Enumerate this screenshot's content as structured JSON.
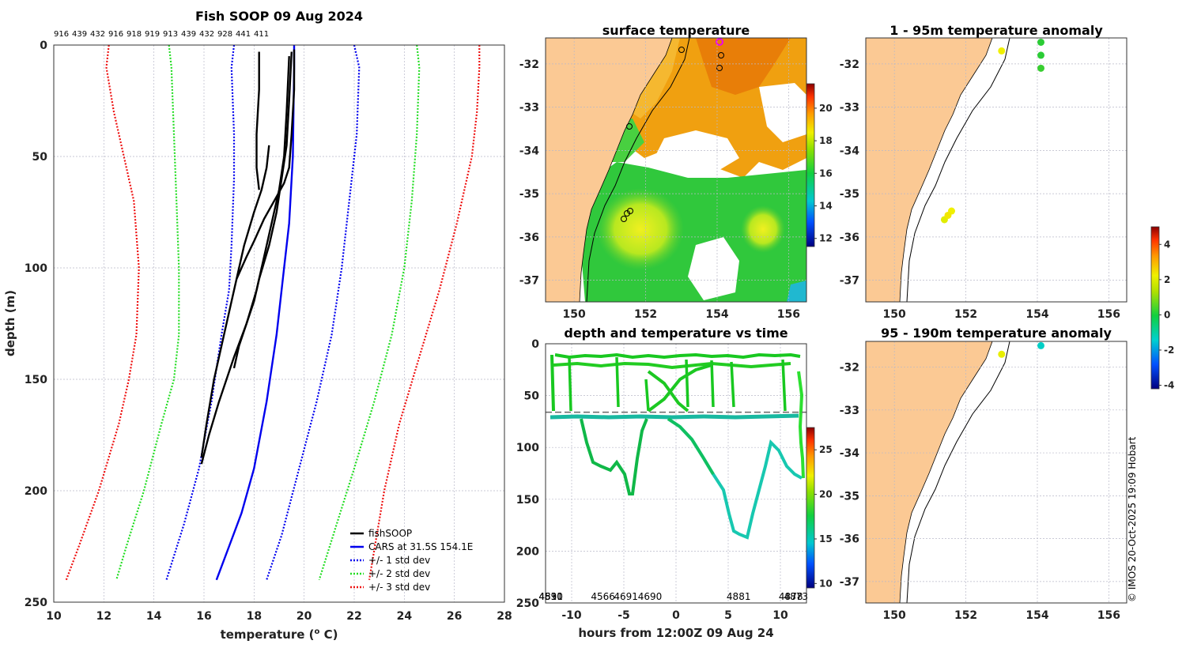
{
  "chart_data": [
    {
      "type": "line",
      "title": "Fish SOOP 09 Aug 2024",
      "top_labels": [
        "916",
        "439",
        "432",
        "916",
        "918",
        "919",
        "913",
        "439",
        "432",
        "928",
        "441",
        "411"
      ],
      "xlabel": "temperature (°C)",
      "xlabel_main": "temperature (",
      "xlabel_sup": "o",
      "xlabel_tail": " C)",
      "ylabel": "depth (m)",
      "xlim": [
        10,
        28
      ],
      "ylim": [
        0,
        250
      ],
      "xticks": [
        "10",
        "12",
        "14",
        "16",
        "18",
        "20",
        "22",
        "24",
        "26",
        "28"
      ],
      "yticks": [
        "0",
        "50",
        "100",
        "150",
        "200",
        "250"
      ],
      "legend": [
        "fishSOOP",
        "CARS at 31.5S 154.1E",
        "+/- 1 std dev",
        "+/- 2 std dev",
        "+/- 3 std dev"
      ],
      "series": [
        {
          "name": "CARS mean",
          "color": "#0000ee",
          "style": "solid",
          "x": [
            19.6,
            19.6,
            19.55,
            19.4,
            19.2,
            18.9,
            18.5,
            18.0,
            17.5,
            17.0,
            16.5
          ],
          "y": [
            0,
            10,
            50,
            80,
            100,
            130,
            160,
            190,
            210,
            225,
            240
          ]
        },
        {
          "name": "+1 std",
          "color": "#0000ee",
          "style": "dotted",
          "x": [
            22.0,
            22.2,
            22.1,
            21.8,
            21.5,
            21.1,
            20.5,
            19.8,
            19.1,
            18.5
          ],
          "y": [
            0,
            10,
            40,
            70,
            100,
            130,
            160,
            190,
            220,
            240
          ]
        },
        {
          "name": "-1 std",
          "color": "#0000ee",
          "style": "dotted",
          "x": [
            17.2,
            17.1,
            17.2,
            17.2,
            17.1,
            17.0,
            16.7,
            16.3,
            15.8,
            15.2,
            14.5
          ],
          "y": [
            0,
            10,
            40,
            60,
            90,
            110,
            130,
            160,
            190,
            215,
            240
          ]
        },
        {
          "name": "+2 std",
          "color": "#22dd22",
          "style": "dotted",
          "x": [
            24.5,
            24.6,
            24.5,
            24.3,
            24.0,
            23.5,
            22.8,
            22.0,
            21.3,
            20.6
          ],
          "y": [
            0,
            10,
            40,
            70,
            100,
            130,
            160,
            190,
            215,
            240
          ]
        },
        {
          "name": "-2 std",
          "color": "#22dd22",
          "style": "dotted",
          "x": [
            14.6,
            14.7,
            14.8,
            14.9,
            15.0,
            15.0,
            14.8,
            14.3,
            13.6,
            12.9,
            12.5
          ],
          "y": [
            0,
            10,
            40,
            70,
            100,
            130,
            150,
            170,
            200,
            225,
            240
          ]
        },
        {
          "name": "+3 std",
          "color": "#ee1111",
          "style": "dotted",
          "x": [
            27.0,
            27.0,
            26.9,
            26.7,
            26.1,
            25.4,
            24.6,
            23.8,
            23.2,
            22.6
          ],
          "y": [
            0,
            10,
            30,
            50,
            80,
            110,
            140,
            170,
            200,
            240
          ]
        },
        {
          "name": "-3 std",
          "color": "#ee1111",
          "style": "dotted",
          "x": [
            12.2,
            12.1,
            12.4,
            12.8,
            13.2,
            13.4,
            13.3,
            13.0,
            12.6,
            11.8,
            11.0,
            10.5
          ],
          "y": [
            0,
            10,
            30,
            50,
            70,
            100,
            130,
            150,
            170,
            200,
            225,
            240
          ]
        },
        {
          "name": "fishSOOP 1",
          "color": "#000000",
          "style": "solid",
          "x": [
            19.6,
            19.6,
            19.5,
            19.4,
            19.2,
            18.8,
            18.4,
            18.0,
            17.7,
            17.3
          ],
          "y": [
            2,
            20,
            40,
            55,
            62,
            70,
            78,
            88,
            95,
            105
          ]
        },
        {
          "name": "fishSOOP 2",
          "color": "#000000",
          "style": "solid",
          "x": [
            19.5,
            19.4,
            19.3,
            19.1,
            18.9,
            18.6,
            18.2,
            18.0,
            17.7,
            17.4,
            17.2
          ],
          "y": [
            3,
            25,
            45,
            60,
            75,
            90,
            105,
            115,
            125,
            135,
            145
          ]
        },
        {
          "name": "fishSOOP 3",
          "color": "#000000",
          "style": "solid",
          "x": [
            19.4,
            19.3,
            19.2,
            19.0,
            18.7,
            18.4,
            18.1,
            17.7,
            17.2,
            16.6,
            16.2,
            15.9
          ],
          "y": [
            5,
            30,
            50,
            65,
            80,
            95,
            110,
            125,
            140,
            160,
            175,
            188
          ]
        },
        {
          "name": "fishSOOP 4",
          "color": "#000000",
          "style": "solid",
          "x": [
            18.2,
            18.2,
            18.1,
            18.1,
            18.2
          ],
          "y": [
            3,
            20,
            40,
            55,
            65
          ]
        },
        {
          "name": "fishSOOP 5",
          "color": "#000000",
          "style": "solid",
          "x": [
            18.6,
            18.5,
            18.3,
            18.0,
            17.6,
            17.2,
            16.8,
            16.4,
            16.1,
            15.9
          ],
          "y": [
            45,
            55,
            65,
            75,
            90,
            110,
            130,
            150,
            170,
            185
          ]
        }
      ]
    },
    {
      "type": "heatmap",
      "title": "surface temperature",
      "xticks": [
        "150",
        "152",
        "154",
        "156"
      ],
      "yticks": [
        "-32",
        "-33",
        "-34",
        "-35",
        "-36",
        "-37"
      ],
      "xlim": [
        149.2,
        156.5
      ],
      "ylim": [
        -37.5,
        -31.4
      ],
      "colorbar_ticks": [
        "12",
        "14",
        "16",
        "18",
        "20"
      ],
      "colorbar_range": [
        11.5,
        21.5
      ]
    },
    {
      "type": "scatter",
      "title": "1 - 95m temperature anomaly",
      "xticks": [
        "150",
        "152",
        "154",
        "156"
      ],
      "yticks": [
        "-32",
        "-33",
        "-34",
        "-35",
        "-36",
        "-37"
      ],
      "xlim": [
        149.2,
        156.5
      ],
      "ylim": [
        -37.5,
        -31.4
      ],
      "points": [
        {
          "lon": 153.0,
          "lat": -31.7,
          "anomaly": 2.0
        },
        {
          "lon": 154.1,
          "lat": -31.5,
          "anomaly": 0.2
        },
        {
          "lon": 154.1,
          "lat": -31.8,
          "anomaly": 0.2
        },
        {
          "lon": 154.1,
          "lat": -32.1,
          "anomaly": 0.3
        },
        {
          "lon": 151.6,
          "lat": -35.4,
          "anomaly": 2.0
        },
        {
          "lon": 151.4,
          "lat": -35.6,
          "anomaly": 1.8
        },
        {
          "lon": 151.5,
          "lat": -35.5,
          "anomaly": 2.1
        }
      ]
    },
    {
      "type": "scatter",
      "title": "95 - 190m temperature anomaly",
      "xticks": [
        "150",
        "152",
        "154",
        "156"
      ],
      "yticks": [
        "-32",
        "-33",
        "-34",
        "-35",
        "-36",
        "-37"
      ],
      "xlim": [
        149.2,
        156.5
      ],
      "ylim": [
        -37.5,
        -31.4
      ],
      "points": [
        {
          "lon": 153.0,
          "lat": -31.7,
          "anomaly": 1.9
        },
        {
          "lon": 154.1,
          "lat": -31.5,
          "anomaly": -1.4
        }
      ],
      "colorbar_ticks": [
        "4",
        "2",
        "0",
        "-2",
        "-4"
      ],
      "colorbar_range": [
        -4.2,
        5.0
      ]
    },
    {
      "type": "line",
      "title": "depth and temperature vs time",
      "xlabel": "hours from 12:00Z 09 Aug 24",
      "xlim": [
        -12.5,
        12.5
      ],
      "ylim": [
        0,
        250
      ],
      "xticks": [
        "-10",
        "-5",
        "0",
        "5",
        "10"
      ],
      "yticks": [
        "0",
        "50",
        "100",
        "150",
        "200",
        "250"
      ],
      "mixed_layer_depth": 66,
      "colorbar_ticks": [
        "10",
        "15",
        "20",
        "25"
      ],
      "colorbar_range": [
        9.5,
        27.5
      ],
      "bottom_labels": [
        {
          "hour": -12.0,
          "text": "4891"
        },
        {
          "hour": -12.0,
          "text": "4530"
        },
        {
          "hour": -12.0,
          "text": "4510"
        },
        {
          "hour": -7.0,
          "text": "4566"
        },
        {
          "hour": -4.8,
          "text": "4691"
        },
        {
          "hour": -2.5,
          "text": "4690"
        },
        {
          "hour": 6.0,
          "text": "4881"
        },
        {
          "hour": 11.0,
          "text": "4878"
        },
        {
          "hour": 11.5,
          "text": "4873"
        }
      ]
    }
  ],
  "footer": {
    "credit": "© IMOS 20-Oct-2025 19:09 Hobart"
  }
}
